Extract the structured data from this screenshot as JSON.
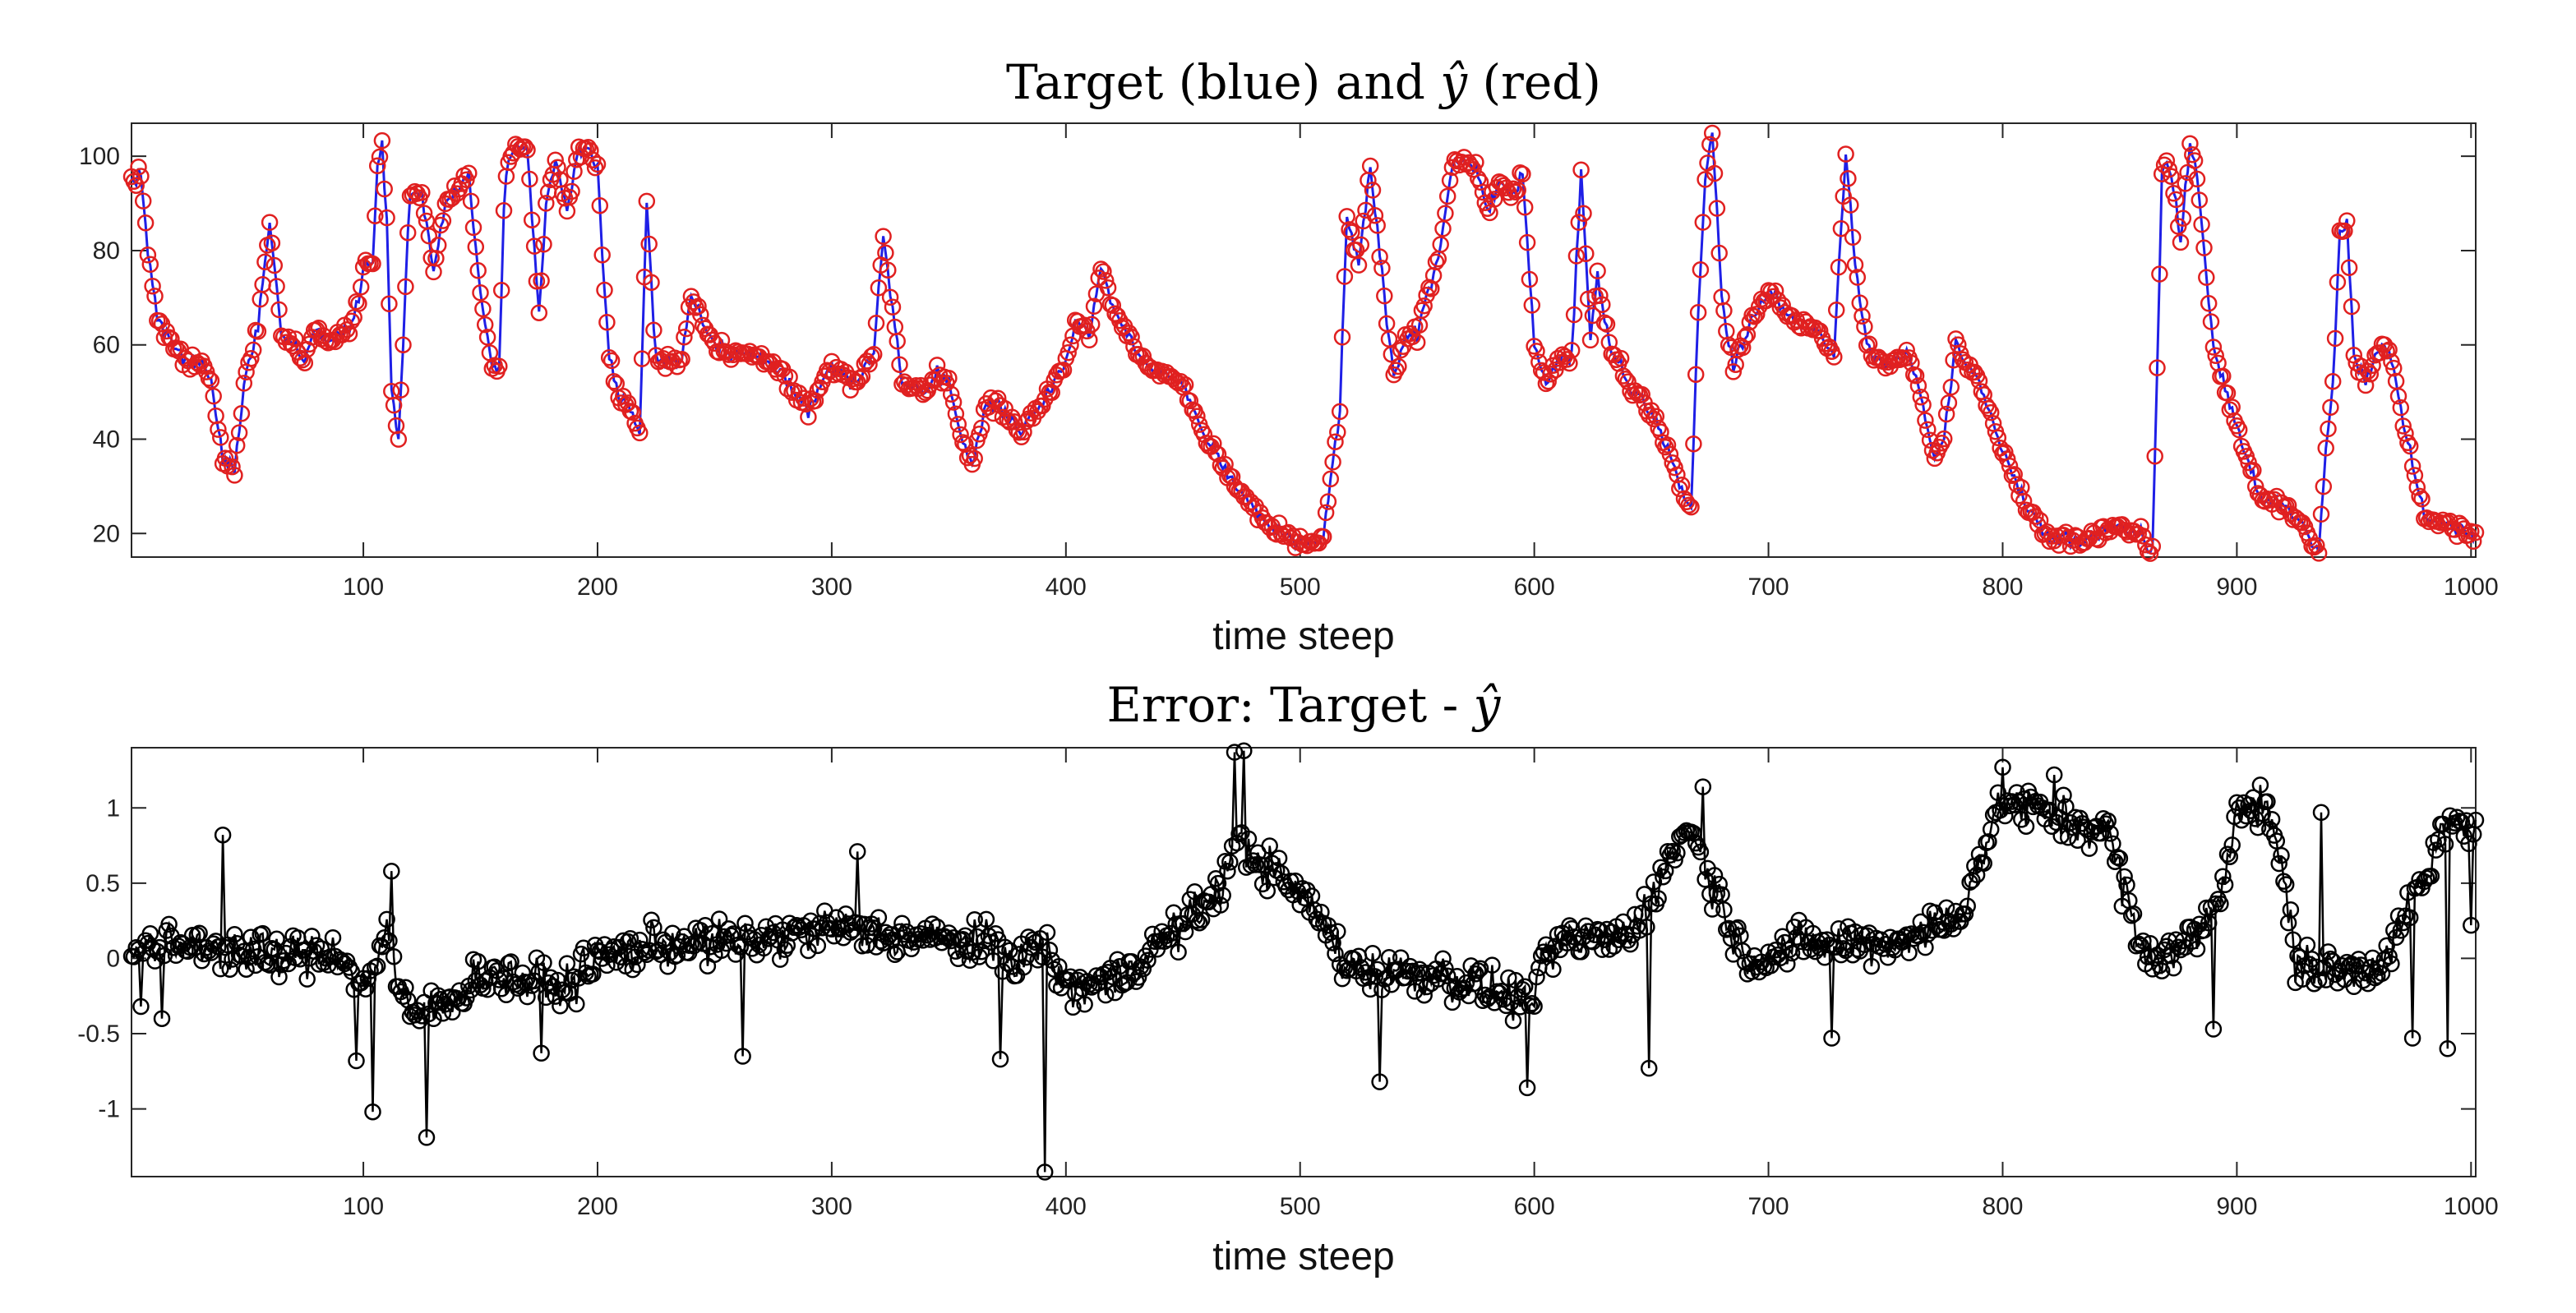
{
  "chart_data": [
    {
      "type": "line",
      "title": "Target (blue) and ",
      "title_symbol": "ŷ",
      "title_suffix": " (red)",
      "xlabel": "time steep",
      "ylabel": "",
      "xlim": [
        1,
        1002
      ],
      "ylim": [
        15,
        107
      ],
      "xticks": [
        100,
        200,
        300,
        400,
        500,
        600,
        700,
        800,
        900,
        1000
      ],
      "yticks": [
        20,
        40,
        60,
        80,
        100
      ],
      "colors": {
        "target": "#1f1fe6",
        "prediction": "#e02020"
      },
      "series_names": [
        "Target",
        "ŷ"
      ],
      "anchors_x": [
        1,
        5,
        8,
        12,
        18,
        25,
        30,
        35,
        40,
        45,
        50,
        55,
        60,
        65,
        70,
        75,
        80,
        85,
        90,
        95,
        100,
        104,
        106,
        108,
        110,
        112,
        115,
        120,
        125,
        130,
        135,
        140,
        145,
        150,
        155,
        158,
        160,
        162,
        165,
        170,
        175,
        178,
        182,
        187,
        192,
        197,
        200,
        205,
        210,
        215,
        218,
        221,
        225,
        235,
        240,
        250,
        260,
        270,
        280,
        290,
        300,
        310,
        318,
        322,
        330,
        340,
        345,
        350,
        355,
        360,
        365,
        370,
        380,
        390,
        400,
        405,
        410,
        415,
        420,
        425,
        430,
        440,
        450,
        460,
        470,
        480,
        490,
        500,
        507,
        510,
        514,
        517,
        520,
        525,
        530,
        536,
        540,
        545,
        550,
        555,
        560,
        565,
        570,
        575,
        580,
        585,
        590,
        595,
        600,
        605,
        610,
        616,
        620,
        624,
        627,
        632,
        640,
        650,
        660,
        667,
        670,
        673,
        676,
        680,
        685,
        690,
        700,
        710,
        720,
        728,
        733,
        737,
        742,
        750,
        760,
        765,
        770,
        775,
        780,
        790,
        800,
        810,
        815,
        820,
        830,
        840,
        850,
        860,
        862,
        864,
        866,
        868,
        870,
        872,
        876,
        880,
        883,
        886,
        890,
        900,
        910,
        920,
        930,
        935,
        938,
        941,
        944,
        947,
        950,
        955,
        960,
        965,
        970,
        980,
        990,
        1002
      ],
      "anchors_y": [
        95,
        96,
        80,
        65,
        60,
        56,
        57,
        52,
        36,
        34,
        55,
        64,
        86,
        62,
        60,
        56,
        63,
        60,
        62,
        64,
        75,
        78,
        98,
        103,
        86,
        50,
        40,
        93,
        92,
        75,
        91,
        93,
        96,
        70,
        55,
        54,
        90,
        99,
        102,
        101,
        66,
        90,
        100,
        88,
        101,
        102,
        97,
        57,
        48,
        46,
        40,
        90,
        57,
        56,
        70,
        60,
        58,
        58,
        53,
        46,
        56,
        52,
        58,
        84,
        51,
        50,
        55,
        52,
        41,
        34,
        46,
        48,
        42,
        48,
        56,
        66,
        62,
        78,
        68,
        64,
        58,
        54,
        52,
        40,
        32,
        25,
        20,
        18,
        18,
        19,
        35,
        46,
        88,
        76,
        98,
        70,
        54,
        62,
        62,
        72,
        80,
        98,
        99,
        98,
        88,
        95,
        91,
        96,
        61,
        52,
        57,
        58,
        97,
        62,
        75,
        60,
        52,
        46,
        34,
        24,
        68,
        95,
        105,
        70,
        55,
        62,
        72,
        66,
        63,
        58,
        101,
        77,
        60,
        55,
        58,
        50,
        36,
        40,
        60,
        52,
        38,
        26,
        23,
        19,
        19,
        20,
        21,
        20,
        17,
        17,
        55,
        97,
        98,
        96,
        82,
        102,
        96,
        80,
        60,
        42,
        28,
        26,
        20,
        16,
        37,
        52,
        84,
        85,
        58,
        52,
        59,
        60,
        46,
        24,
        22,
        20
      ],
      "n_points": 1002
    },
    {
      "type": "line",
      "title": "Error:  Target - ",
      "title_symbol": "ŷ",
      "xlabel": "time steep",
      "ylabel": "",
      "xlim": [
        1,
        1002
      ],
      "ylim": [
        -1.45,
        1.4
      ],
      "xticks": [
        100,
        200,
        300,
        400,
        500,
        600,
        700,
        800,
        900,
        1000
      ],
      "yticks": [
        -1,
        -0.5,
        0,
        0.5,
        1
      ],
      "ytick_labels": [
        "-1",
        "-0.5",
        "0",
        "0.5",
        "1"
      ],
      "colors": {
        "error": "#000000"
      },
      "series_names": [
        "Target - ŷ"
      ],
      "anchors_x": [
        1,
        30,
        60,
        90,
        100,
        105,
        110,
        115,
        120,
        127,
        135,
        150,
        170,
        185,
        200,
        230,
        260,
        300,
        330,
        360,
        380,
        390,
        395,
        400,
        420,
        440,
        460,
        475,
        490,
        505,
        520,
        540,
        560,
        580,
        597,
        610,
        640,
        655,
        665,
        690,
        720,
        750,
        780,
        800,
        820,
        845,
        860,
        880,
        893,
        900,
        915,
        925,
        940,
        960,
        980,
        990,
        1002
      ],
      "anchors_y": [
        0.05,
        0.1,
        0.0,
        0.05,
        -0.2,
        0.0,
        0.2,
        -0.2,
        -0.4,
        -0.35,
        -0.3,
        -0.1,
        -0.15,
        -0.2,
        0.0,
        0.1,
        0.1,
        0.2,
        0.15,
        0.1,
        0.0,
        0.1,
        -0.05,
        -0.2,
        -0.15,
        0.1,
        0.35,
        0.75,
        0.55,
        0.35,
        -0.05,
        -0.1,
        -0.1,
        -0.2,
        -0.3,
        0.1,
        0.15,
        0.55,
        0.9,
        0.0,
        0.1,
        0.1,
        0.25,
        1.05,
        0.95,
        0.85,
        0.0,
        0.1,
        0.4,
        1.05,
        0.95,
        0.0,
        -0.1,
        -0.05,
        0.5,
        0.9,
        0.85
      ],
      "spikes": [
        [
          5,
          -0.32
        ],
        [
          14,
          -0.4
        ],
        [
          40,
          0.82
        ],
        [
          97,
          -0.68
        ],
        [
          104,
          -1.02
        ],
        [
          112,
          0.58
        ],
        [
          127,
          -1.19
        ],
        [
          176,
          -0.63
        ],
        [
          262,
          -0.65
        ],
        [
          311,
          0.71
        ],
        [
          372,
          -0.67
        ],
        [
          391,
          -1.42
        ],
        [
          472,
          1.37
        ],
        [
          476,
          1.38
        ],
        [
          534,
          -0.82
        ],
        [
          597,
          -0.86
        ],
        [
          649,
          -0.73
        ],
        [
          672,
          1.14
        ],
        [
          727,
          -0.53
        ],
        [
          800,
          1.27
        ],
        [
          822,
          1.22
        ],
        [
          890,
          -0.47
        ],
        [
          912,
          1.04
        ],
        [
          936,
          0.97
        ],
        [
          975,
          -0.53
        ],
        [
          990,
          -0.6
        ],
        [
          1000,
          0.22
        ]
      ],
      "n_points": 1002
    }
  ]
}
